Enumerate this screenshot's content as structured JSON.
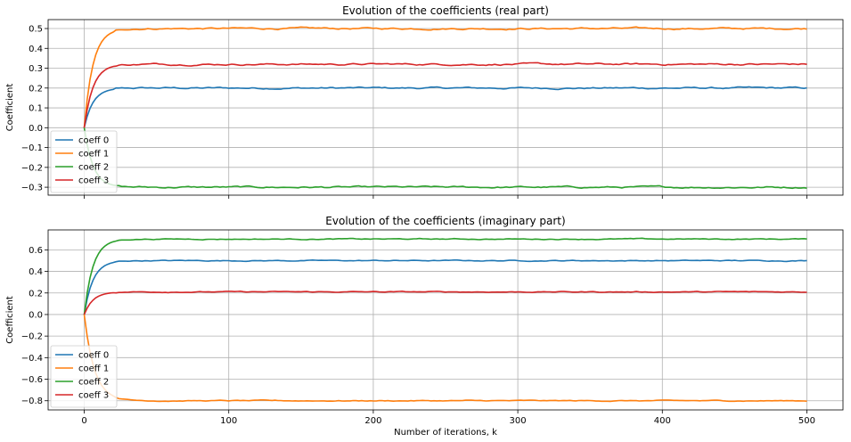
{
  "chart_data": [
    {
      "type": "line",
      "title": "Evolution of the coefficients (real part)",
      "xlabel": "",
      "ylabel": "Coefficient",
      "xlim": [
        -25,
        525
      ],
      "ylim": [
        -0.34,
        0.545
      ],
      "xticks": [
        0,
        100,
        200,
        300,
        400,
        500
      ],
      "xtick_labels_shown": false,
      "yticks": [
        -0.3,
        -0.2,
        -0.1,
        0.0,
        0.1,
        0.2,
        0.3,
        0.4,
        0.5
      ],
      "ytick_labels": [
        "−0.3",
        "−0.2",
        "−0.1",
        "0.0",
        "0.1",
        "0.2",
        "0.3",
        "0.4",
        "0.5"
      ],
      "grid": true,
      "legend": "lower-left",
      "series": [
        {
          "name": "coeff 0",
          "color": "#1f77b4",
          "final": 0.2
        },
        {
          "name": "coeff 1",
          "color": "#ff7f0e",
          "final": 0.5
        },
        {
          "name": "coeff 2",
          "color": "#2ca02c",
          "final": -0.3
        },
        {
          "name": "coeff 3",
          "color": "#d62728",
          "final": 0.32
        }
      ],
      "x_range": [
        0,
        500
      ]
    },
    {
      "type": "line",
      "title": "Evolution of the coefficients (imaginary part)",
      "xlabel": "Number of iterations, k",
      "ylabel": "Coefficient",
      "xlim": [
        -25,
        525
      ],
      "ylim": [
        -0.885,
        0.785
      ],
      "xticks": [
        0,
        100,
        200,
        300,
        400,
        500
      ],
      "xtick_labels": [
        "0",
        "100",
        "200",
        "300",
        "400",
        "500"
      ],
      "xtick_labels_shown": true,
      "yticks": [
        -0.8,
        -0.6,
        -0.4,
        -0.2,
        0.0,
        0.2,
        0.4,
        0.6
      ],
      "ytick_labels": [
        "−0.8",
        "−0.6",
        "−0.4",
        "−0.2",
        "0.0",
        "0.2",
        "0.4",
        "0.6"
      ],
      "grid": true,
      "legend": "lower-left",
      "series": [
        {
          "name": "coeff 0",
          "color": "#1f77b4",
          "final": 0.5
        },
        {
          "name": "coeff 1",
          "color": "#ff7f0e",
          "final": -0.8
        },
        {
          "name": "coeff 2",
          "color": "#2ca02c",
          "final": 0.7
        },
        {
          "name": "coeff 3",
          "color": "#d62728",
          "final": 0.21
        }
      ],
      "x_range": [
        0,
        500
      ]
    }
  ]
}
